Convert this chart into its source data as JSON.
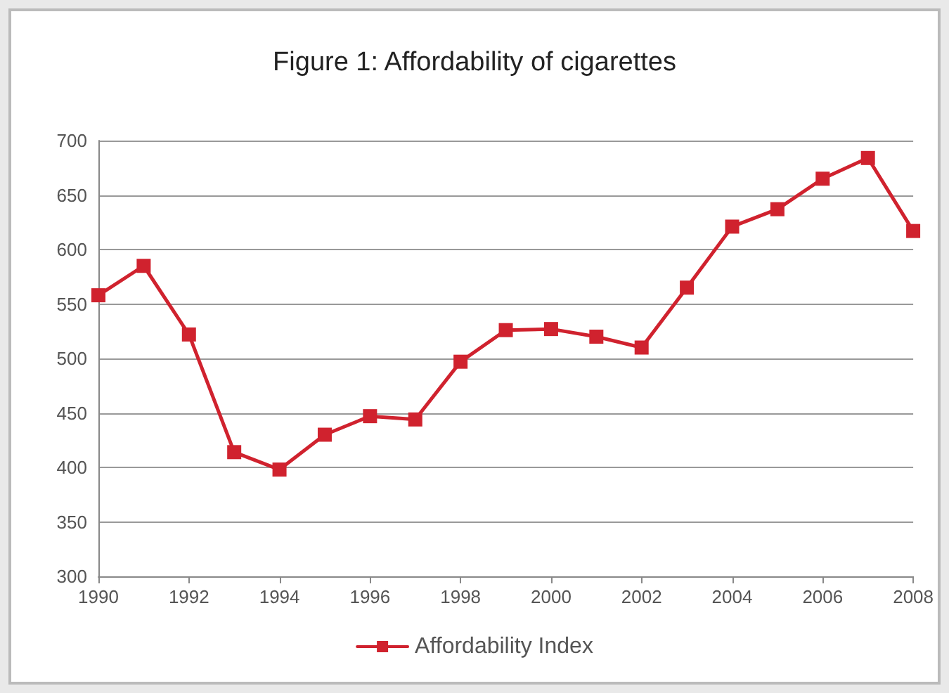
{
  "chart_data": {
    "type": "line",
    "title": "Figure 1: Affordability of cigarettes",
    "x": [
      1990,
      1991,
      1992,
      1993,
      1994,
      1995,
      1996,
      1997,
      1998,
      1999,
      2000,
      2001,
      2002,
      2003,
      2004,
      2005,
      2006,
      2007,
      2008
    ],
    "series": [
      {
        "name": "Affordability Index",
        "color": "#d0222e",
        "values": [
          558,
          585,
          522,
          414,
          398,
          430,
          447,
          444,
          497,
          526,
          527,
          520,
          510,
          565,
          621,
          637,
          665,
          684,
          617
        ]
      }
    ],
    "xlim": [
      1990,
      2008
    ],
    "xticks": [
      1990,
      1992,
      1994,
      1996,
      1998,
      2000,
      2002,
      2004,
      2006,
      2008
    ],
    "ylim": [
      300,
      700
    ],
    "yticks": [
      300,
      350,
      400,
      450,
      500,
      550,
      600,
      650,
      700
    ],
    "grid": "y",
    "legend": "bottom",
    "marker": "square",
    "line_style": "solid"
  }
}
